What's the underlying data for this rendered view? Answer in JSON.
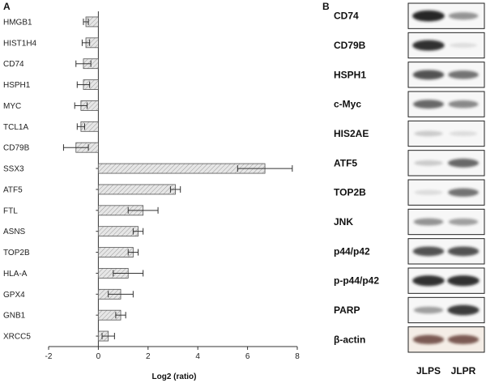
{
  "panels": {
    "a": "A",
    "b": "B"
  },
  "chart_data": {
    "type": "bar",
    "orientation": "horizontal",
    "categories": [
      "HMGB1",
      "HIST1H4",
      "CD74",
      "HSPH1",
      "MYC",
      "TCL1A",
      "CD79B",
      "SSX3",
      "ATF5",
      "FTL",
      "ASNS",
      "TOP2B",
      "HLA-A",
      "GPX4",
      "GNB1",
      "XRCC5"
    ],
    "values": [
      -0.5,
      -0.5,
      -0.6,
      -0.6,
      -0.7,
      -0.7,
      -0.9,
      6.7,
      3.1,
      1.8,
      1.6,
      1.4,
      1.2,
      0.9,
      0.9,
      0.4
    ],
    "errors": [
      0.1,
      0.15,
      0.3,
      0.25,
      0.25,
      0.15,
      0.5,
      1.1,
      0.2,
      0.6,
      0.2,
      0.2,
      0.6,
      0.5,
      0.2,
      0.25
    ],
    "xlabel": "Log2 (ratio)",
    "ylabel": "",
    "xlim": [
      -2,
      8
    ],
    "xticks": [
      "-2",
      "0",
      "2",
      "4",
      "6",
      "8"
    ],
    "xtick_values": [
      -2,
      0,
      2,
      4,
      6,
      8
    ],
    "grid": false,
    "bar_fill": "#e4e4e4",
    "bar_stroke": "#555555"
  },
  "western_blot": {
    "rows": [
      {
        "label": "CD74",
        "lanes": [
          0.95,
          0.45
        ]
      },
      {
        "label": "CD79B",
        "lanes": [
          0.9,
          0.05
        ]
      },
      {
        "label": "HSPH1",
        "lanes": [
          0.75,
          0.6
        ]
      },
      {
        "label": "c-Myc",
        "lanes": [
          0.65,
          0.5
        ]
      },
      {
        "label": "HIS2AE",
        "lanes": [
          0.2,
          0.12
        ]
      },
      {
        "label": "ATF5",
        "lanes": [
          0.2,
          0.65
        ]
      },
      {
        "label": "TOP2B",
        "lanes": [
          0.12,
          0.6
        ]
      },
      {
        "label": "JNK",
        "lanes": [
          0.45,
          0.4
        ]
      },
      {
        "label": "p44/p42",
        "lanes": [
          0.75,
          0.75
        ]
      },
      {
        "label": "p-p44/p42",
        "lanes": [
          0.9,
          0.9
        ]
      },
      {
        "label": "PARP",
        "lanes": [
          0.4,
          0.85
        ]
      },
      {
        "label": "β-actin",
        "lanes": [
          0.7,
          0.7
        ]
      }
    ],
    "lane_labels": [
      "JLPS",
      "JLPR"
    ],
    "band_color": "#1a1a1a",
    "actin_band_color": "#4a1e12"
  }
}
